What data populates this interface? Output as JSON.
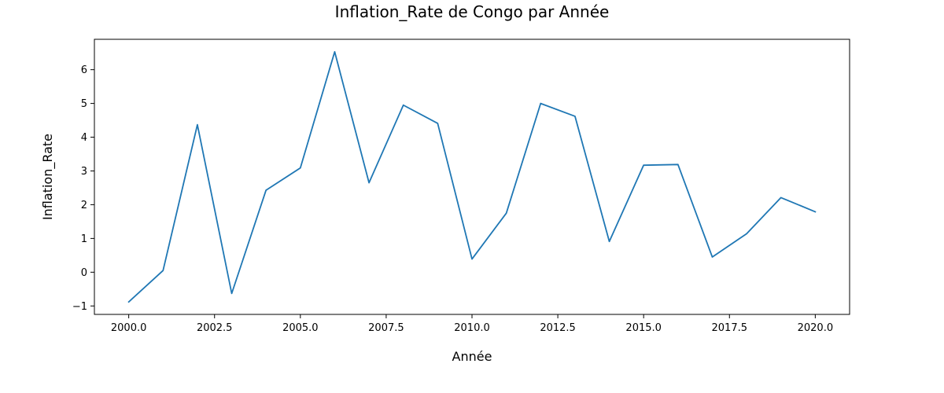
{
  "chart_data": {
    "type": "line",
    "title": "Inflation_Rate de Congo par Année",
    "xlabel": "Année",
    "ylabel": "Inflation_Rate",
    "xlim": [
      1999.0,
      2021.0
    ],
    "ylim": [
      -1.25,
      6.9
    ],
    "xticks": [
      2000.0,
      2002.5,
      2005.0,
      2007.5,
      2010.0,
      2012.5,
      2015.0,
      2017.5,
      2020.0
    ],
    "xtick_labels": [
      "2000.0",
      "2002.5",
      "2005.0",
      "2007.5",
      "2010.0",
      "2012.5",
      "2015.0",
      "2017.5",
      "2020.0"
    ],
    "yticks": [
      -1,
      0,
      1,
      2,
      3,
      4,
      5,
      6
    ],
    "ytick_labels": [
      "−1",
      "0",
      "1",
      "2",
      "3",
      "4",
      "5",
      "6"
    ],
    "grid": false,
    "series": [
      {
        "color": "#1f77b4",
        "x": [
          2000,
          2001,
          2002,
          2003,
          2004,
          2005,
          2006,
          2007,
          2008,
          2009,
          2010,
          2011,
          2012,
          2013,
          2014,
          2015,
          2016,
          2017,
          2018,
          2019,
          2020
        ],
        "values": [
          -0.88,
          0.05,
          4.37,
          -0.63,
          2.43,
          3.09,
          6.53,
          2.65,
          4.95,
          4.41,
          0.39,
          1.75,
          5.0,
          4.62,
          0.91,
          3.17,
          3.19,
          0.45,
          1.14,
          2.21,
          1.79
        ]
      }
    ]
  }
}
